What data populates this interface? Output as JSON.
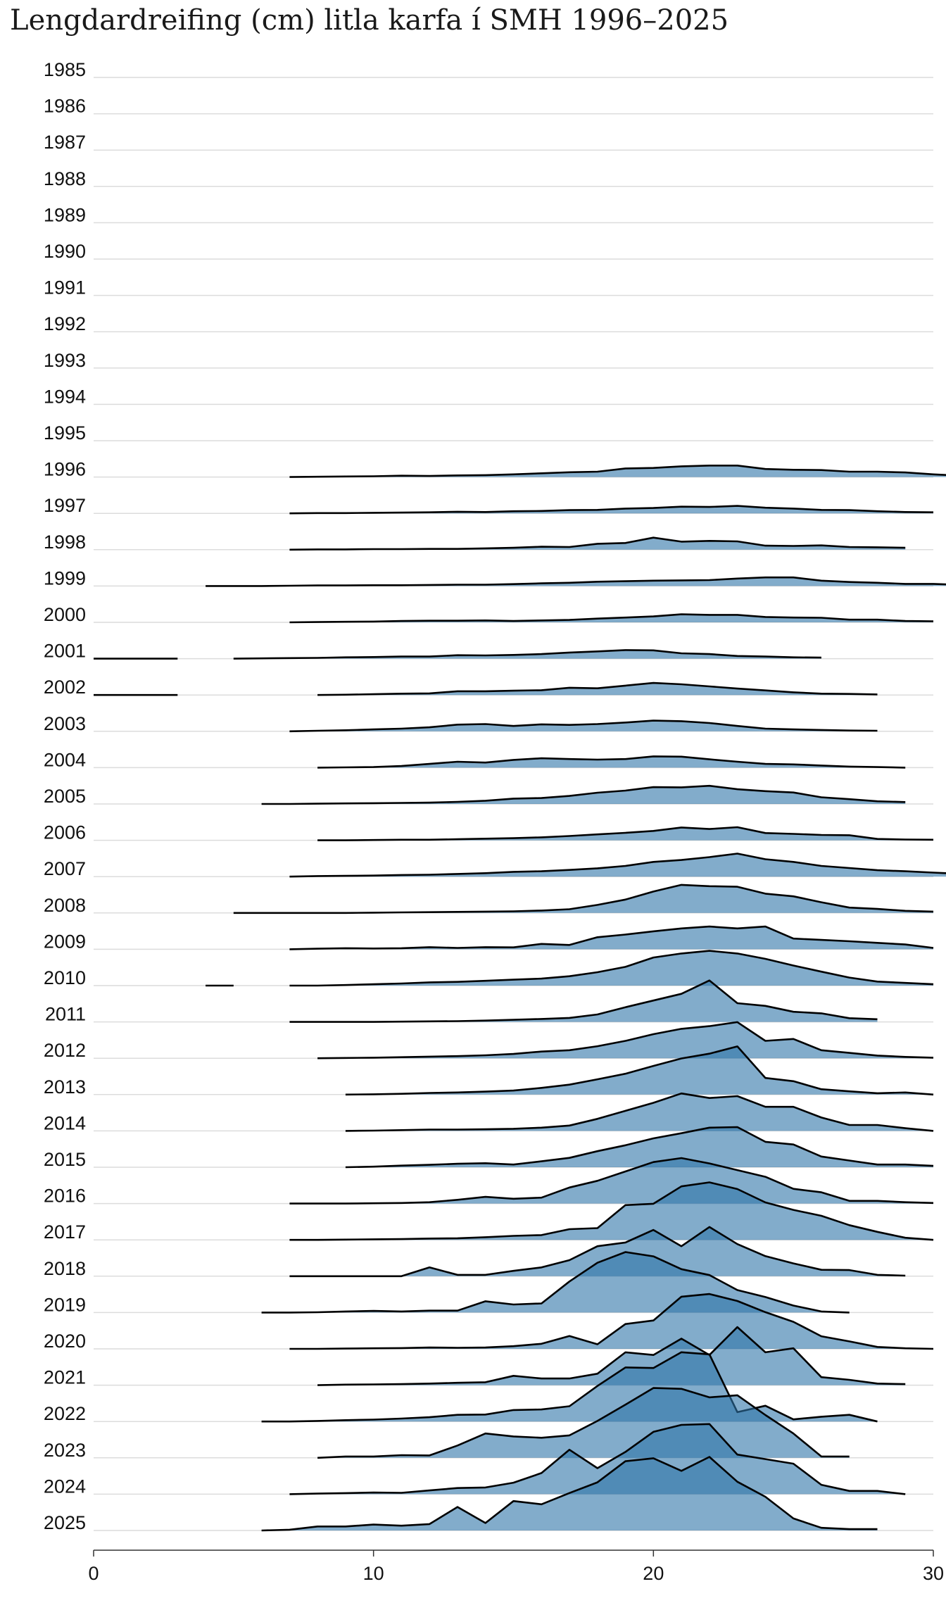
{
  "chart_data": {
    "type": "area",
    "subtype": "ridgeline",
    "title": "Lengdardreifing (cm) litla karfa í SMH 1996–2025",
    "xlabel": "",
    "ylabel": "",
    "xlim": [
      0,
      30
    ],
    "x_ticks": [
      0,
      10,
      20,
      30
    ],
    "grid": true,
    "fill_color": "#2e74a8",
    "line_color": "#000000",
    "row_labels": [
      "1985",
      "1986",
      "1987",
      "1988",
      "1989",
      "1990",
      "1991",
      "1992",
      "1993",
      "1994",
      "1995",
      "1996",
      "1997",
      "1998",
      "1999",
      "2000",
      "2001",
      "2002",
      "2003",
      "2004",
      "2005",
      "2006",
      "2007",
      "2008",
      "2009",
      "2010",
      "2011",
      "2012",
      "2013",
      "2014",
      "2015",
      "2016",
      "2017",
      "2018",
      "2019",
      "2020",
      "2021",
      "2022",
      "2023",
      "2024",
      "2025"
    ],
    "series": [
      {
        "year": "1996",
        "x0": 7,
        "values": [
          0.0,
          0.01,
          0.02,
          0.03,
          0.05,
          0.04,
          0.06,
          0.07,
          0.1,
          0.14,
          0.18,
          0.2,
          0.32,
          0.34,
          0.4,
          0.43,
          0.43,
          0.3,
          0.27,
          0.26,
          0.2,
          0.2,
          0.17,
          0.1,
          0.05
        ]
      },
      {
        "year": "1997",
        "x0": 7,
        "values": [
          0.0,
          0.01,
          0.01,
          0.02,
          0.03,
          0.04,
          0.06,
          0.05,
          0.08,
          0.09,
          0.12,
          0.13,
          0.18,
          0.2,
          0.25,
          0.24,
          0.28,
          0.21,
          0.18,
          0.13,
          0.12,
          0.08,
          0.05,
          0.04
        ]
      },
      {
        "year": "1998",
        "x0": 7,
        "values": [
          0.0,
          0.01,
          0.01,
          0.02,
          0.02,
          0.03,
          0.03,
          0.05,
          0.07,
          0.11,
          0.1,
          0.22,
          0.25,
          0.45,
          0.3,
          0.33,
          0.31,
          0.15,
          0.14,
          0.16,
          0.1,
          0.09,
          0.07
        ]
      },
      {
        "year": "1999",
        "x0": 4,
        "values": [
          0.0,
          0.0,
          0.0,
          0.01,
          0.02,
          0.02,
          0.03,
          0.03,
          0.04,
          0.05,
          0.05,
          0.07,
          0.1,
          0.12,
          0.16,
          0.18,
          0.2,
          0.21,
          0.22,
          0.28,
          0.32,
          0.32,
          0.2,
          0.15,
          0.12,
          0.08,
          0.08,
          0.04,
          0.04
        ]
      },
      {
        "year": "2000",
        "x0": 7,
        "values": [
          0.0,
          0.01,
          0.02,
          0.03,
          0.05,
          0.06,
          0.06,
          0.07,
          0.05,
          0.07,
          0.09,
          0.14,
          0.18,
          0.22,
          0.3,
          0.28,
          0.28,
          0.2,
          0.18,
          0.17,
          0.1,
          0.1,
          0.05,
          0.04
        ]
      },
      {
        "year": "2001",
        "x0": 5,
        "values": [
          0.0,
          0.01,
          0.02,
          0.03,
          0.05,
          0.06,
          0.08,
          0.08,
          0.13,
          0.12,
          0.14,
          0.17,
          0.23,
          0.27,
          0.32,
          0.31,
          0.2,
          0.17,
          0.1,
          0.08,
          0.05,
          0.04
        ]
      },
      {
        "year": "2002",
        "x0": 8,
        "values": [
          0.0,
          0.01,
          0.03,
          0.05,
          0.06,
          0.14,
          0.14,
          0.16,
          0.18,
          0.27,
          0.25,
          0.35,
          0.45,
          0.4,
          0.32,
          0.24,
          0.17,
          0.1,
          0.05,
          0.04,
          0.02
        ]
      },
      {
        "year": "2003",
        "x0": 7,
        "values": [
          0.0,
          0.02,
          0.04,
          0.07,
          0.1,
          0.15,
          0.25,
          0.27,
          0.2,
          0.26,
          0.24,
          0.27,
          0.33,
          0.4,
          0.38,
          0.31,
          0.2,
          0.1,
          0.07,
          0.05,
          0.03,
          0.02
        ]
      },
      {
        "year": "2004",
        "x0": 8,
        "values": [
          0.0,
          0.01,
          0.02,
          0.06,
          0.14,
          0.22,
          0.19,
          0.29,
          0.35,
          0.32,
          0.3,
          0.32,
          0.42,
          0.41,
          0.31,
          0.22,
          0.14,
          0.12,
          0.08,
          0.04,
          0.02,
          0.0
        ]
      },
      {
        "year": "2005",
        "x0": 6,
        "values": [
          0.0,
          0.0,
          0.01,
          0.02,
          0.03,
          0.04,
          0.05,
          0.08,
          0.12,
          0.2,
          0.22,
          0.3,
          0.42,
          0.5,
          0.63,
          0.62,
          0.68,
          0.55,
          0.48,
          0.43,
          0.25,
          0.18,
          0.1,
          0.07
        ]
      },
      {
        "year": "2006",
        "x0": 8,
        "values": [
          0.0,
          0.0,
          0.01,
          0.02,
          0.02,
          0.04,
          0.06,
          0.08,
          0.11,
          0.16,
          0.22,
          0.28,
          0.35,
          0.48,
          0.42,
          0.49,
          0.27,
          0.24,
          0.2,
          0.19,
          0.05,
          0.03,
          0.02
        ]
      },
      {
        "year": "2007",
        "x0": 7,
        "values": [
          0.0,
          0.02,
          0.03,
          0.04,
          0.06,
          0.07,
          0.1,
          0.13,
          0.18,
          0.2,
          0.25,
          0.31,
          0.4,
          0.55,
          0.62,
          0.73,
          0.86,
          0.65,
          0.55,
          0.4,
          0.32,
          0.24,
          0.2,
          0.15,
          0.1,
          0.05
        ]
      },
      {
        "year": "2008",
        "x0": 5,
        "values": [
          0.0,
          0.0,
          0.0,
          0.0,
          0.0,
          0.01,
          0.02,
          0.03,
          0.04,
          0.05,
          0.06,
          0.09,
          0.14,
          0.3,
          0.5,
          0.8,
          1.05,
          1.0,
          0.98,
          0.72,
          0.62,
          0.4,
          0.2,
          0.15,
          0.08,
          0.05
        ]
      },
      {
        "year": "2009",
        "x0": 7,
        "values": [
          0.0,
          0.02,
          0.04,
          0.03,
          0.04,
          0.08,
          0.05,
          0.08,
          0.07,
          0.2,
          0.16,
          0.45,
          0.55,
          0.67,
          0.78,
          0.85,
          0.78,
          0.85,
          0.4,
          0.35,
          0.3,
          0.24,
          0.18,
          0.05
        ]
      },
      {
        "year": "2010",
        "x0": 7,
        "values": [
          0.0,
          0.0,
          0.02,
          0.05,
          0.08,
          0.12,
          0.14,
          0.18,
          0.22,
          0.26,
          0.35,
          0.5,
          0.7,
          1.05,
          1.2,
          1.3,
          1.2,
          1.0,
          0.75,
          0.52,
          0.3,
          0.15,
          0.1,
          0.05
        ]
      },
      {
        "year": "2011",
        "x0": 7,
        "values": [
          0.0,
          0.0,
          0.0,
          0.0,
          0.01,
          0.02,
          0.03,
          0.05,
          0.08,
          0.11,
          0.15,
          0.28,
          0.55,
          0.8,
          1.05,
          1.55,
          0.7,
          0.6,
          0.38,
          0.32,
          0.14,
          0.1
        ]
      },
      {
        "year": "2012",
        "x0": 8,
        "values": [
          0.0,
          0.01,
          0.02,
          0.04,
          0.06,
          0.08,
          0.11,
          0.16,
          0.25,
          0.3,
          0.45,
          0.65,
          0.9,
          1.1,
          1.2,
          1.35,
          0.65,
          0.72,
          0.3,
          0.2,
          0.1,
          0.05,
          0.02
        ]
      },
      {
        "year": "2013",
        "x0": 9,
        "values": [
          0.0,
          0.01,
          0.03,
          0.06,
          0.08,
          0.11,
          0.15,
          0.25,
          0.37,
          0.57,
          0.78,
          1.07,
          1.35,
          1.53,
          1.8,
          0.62,
          0.5,
          0.2,
          0.12,
          0.05,
          0.08,
          0.0
        ]
      },
      {
        "year": "2014",
        "x0": 9,
        "values": [
          0.0,
          0.01,
          0.03,
          0.05,
          0.05,
          0.06,
          0.08,
          0.12,
          0.2,
          0.45,
          0.75,
          1.05,
          1.4,
          1.23,
          1.3,
          0.9,
          0.9,
          0.5,
          0.22,
          0.22,
          0.1,
          0.0
        ]
      },
      {
        "year": "2015",
        "x0": 9,
        "values": [
          0.0,
          0.02,
          0.06,
          0.09,
          0.13,
          0.15,
          0.1,
          0.22,
          0.35,
          0.6,
          0.82,
          1.08,
          1.27,
          1.48,
          1.5,
          0.95,
          0.85,
          0.4,
          0.25,
          0.1,
          0.1,
          0.05
        ]
      },
      {
        "year": "2016",
        "x0": 7,
        "values": [
          0.0,
          0.0,
          0.0,
          0.01,
          0.02,
          0.05,
          0.14,
          0.25,
          0.18,
          0.22,
          0.6,
          0.85,
          1.2,
          1.55,
          1.7,
          1.5,
          1.25,
          1.0,
          0.55,
          0.42,
          0.1,
          0.1,
          0.05,
          0.02
        ]
      },
      {
        "year": "2017",
        "x0": 7,
        "values": [
          0.0,
          0.0,
          0.01,
          0.02,
          0.03,
          0.05,
          0.06,
          0.1,
          0.15,
          0.18,
          0.4,
          0.44,
          1.3,
          1.35,
          2.0,
          2.15,
          1.9,
          1.4,
          1.12,
          0.9,
          0.55,
          0.3,
          0.08,
          0.0
        ]
      },
      {
        "year": "2018",
        "x0": 7,
        "values": [
          0.0,
          0.0,
          0.0,
          0.0,
          0.0,
          0.33,
          0.05,
          0.05,
          0.2,
          0.33,
          0.6,
          1.12,
          1.26,
          1.73,
          1.12,
          1.84,
          1.2,
          0.75,
          0.48,
          0.24,
          0.23,
          0.05,
          0.02
        ]
      },
      {
        "year": "2019",
        "x0": 6,
        "values": [
          0.0,
          0.0,
          0.01,
          0.04,
          0.06,
          0.04,
          0.07,
          0.07,
          0.42,
          0.3,
          0.34,
          1.16,
          1.86,
          2.26,
          2.1,
          1.62,
          1.4,
          0.84,
          0.58,
          0.26,
          0.04,
          0.0
        ]
      },
      {
        "year": "2020",
        "x0": 7,
        "values": [
          0.0,
          0.0,
          0.01,
          0.02,
          0.03,
          0.05,
          0.04,
          0.05,
          0.1,
          0.19,
          0.48,
          0.17,
          0.93,
          1.06,
          1.95,
          2.05,
          1.79,
          1.37,
          1.01,
          0.47,
          0.28,
          0.07,
          0.02,
          0.0
        ]
      },
      {
        "year": "2021",
        "x0": 8,
        "values": [
          0.0,
          0.02,
          0.03,
          0.04,
          0.06,
          0.09,
          0.11,
          0.35,
          0.25,
          0.25,
          0.43,
          1.23,
          1.13,
          1.74,
          1.13,
          2.17,
          1.23,
          1.38,
          0.3,
          0.2,
          0.06,
          0.04
        ]
      },
      {
        "year": "2022",
        "x0": 6,
        "values": [
          0.0,
          0.0,
          0.02,
          0.05,
          0.07,
          0.11,
          0.16,
          0.25,
          0.26,
          0.43,
          0.45,
          0.57,
          1.33,
          2.02,
          2.0,
          2.59,
          2.51,
          0.35,
          0.59,
          0.08,
          0.18,
          0.25,
          0.0
        ]
      },
      {
        "year": "2023",
        "x0": 8,
        "values": [
          0.0,
          0.05,
          0.05,
          0.1,
          0.09,
          0.46,
          0.91,
          0.8,
          0.75,
          0.84,
          1.38,
          1.99,
          2.61,
          2.58,
          2.26,
          2.34,
          1.6,
          0.91,
          0.05,
          0.05
        ]
      },
      {
        "year": "2024",
        "x0": 7,
        "values": [
          0.0,
          0.02,
          0.04,
          0.06,
          0.05,
          0.14,
          0.23,
          0.25,
          0.43,
          0.79,
          1.66,
          0.97,
          1.58,
          2.33,
          2.59,
          2.62,
          1.48,
          1.31,
          1.14,
          0.35,
          0.12,
          0.12,
          0.0
        ]
      },
      {
        "year": "2025",
        "x0": 6,
        "values": [
          0.0,
          0.03,
          0.15,
          0.15,
          0.22,
          0.18,
          0.24,
          0.88,
          0.28,
          1.1,
          0.98,
          1.4,
          1.8,
          2.59,
          2.7,
          2.23,
          2.75,
          1.82,
          1.26,
          0.45,
          0.1,
          0.05,
          0.05
        ]
      }
    ],
    "extra_segments": [
      {
        "year": "2001",
        "x": [
          0,
          3
        ]
      },
      {
        "year": "2002",
        "x": [
          0,
          3
        ]
      },
      {
        "year": "2010",
        "x": [
          4,
          5
        ]
      }
    ]
  }
}
